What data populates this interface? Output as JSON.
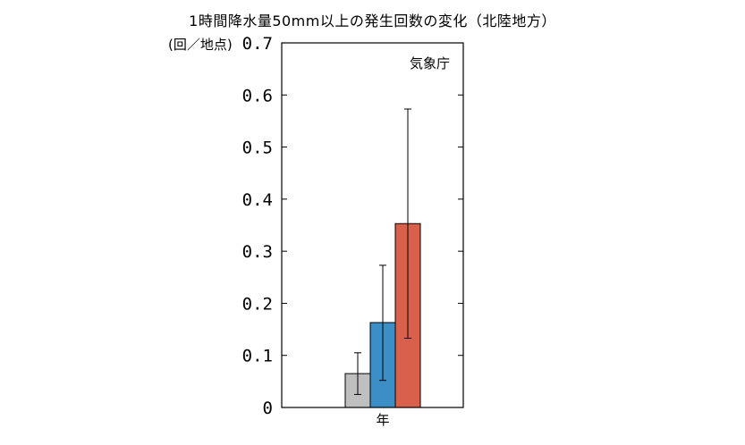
{
  "chart_data": {
    "type": "bar",
    "title": "1時間降水量50mm以上の発生回数の変化（北陸地方）",
    "ylabel": "(回／地点)",
    "credit": "気象庁",
    "xlabel": "年",
    "ylim": [
      0,
      0.7
    ],
    "yticks": [
      0,
      0.1,
      0.2,
      0.3,
      0.4,
      0.5,
      0.6,
      0.7
    ],
    "ytick_labels": [
      "0",
      "0.1",
      "0.2",
      "0.3",
      "0.4",
      "0.5",
      "0.6",
      "0.7"
    ],
    "categories": [
      "年"
    ],
    "series": [
      {
        "values": [
          0.065
        ],
        "error_low": [
          0.025
        ],
        "error_high": [
          0.105
        ],
        "color": "#bfbfbf"
      },
      {
        "values": [
          0.163
        ],
        "error_low": [
          0.052
        ],
        "error_high": [
          0.273
        ],
        "color": "#3c8fc6"
      },
      {
        "values": [
          0.353
        ],
        "error_low": [
          0.133
        ],
        "error_high": [
          0.573
        ],
        "color": "#d9604a"
      }
    ],
    "grid": false
  }
}
